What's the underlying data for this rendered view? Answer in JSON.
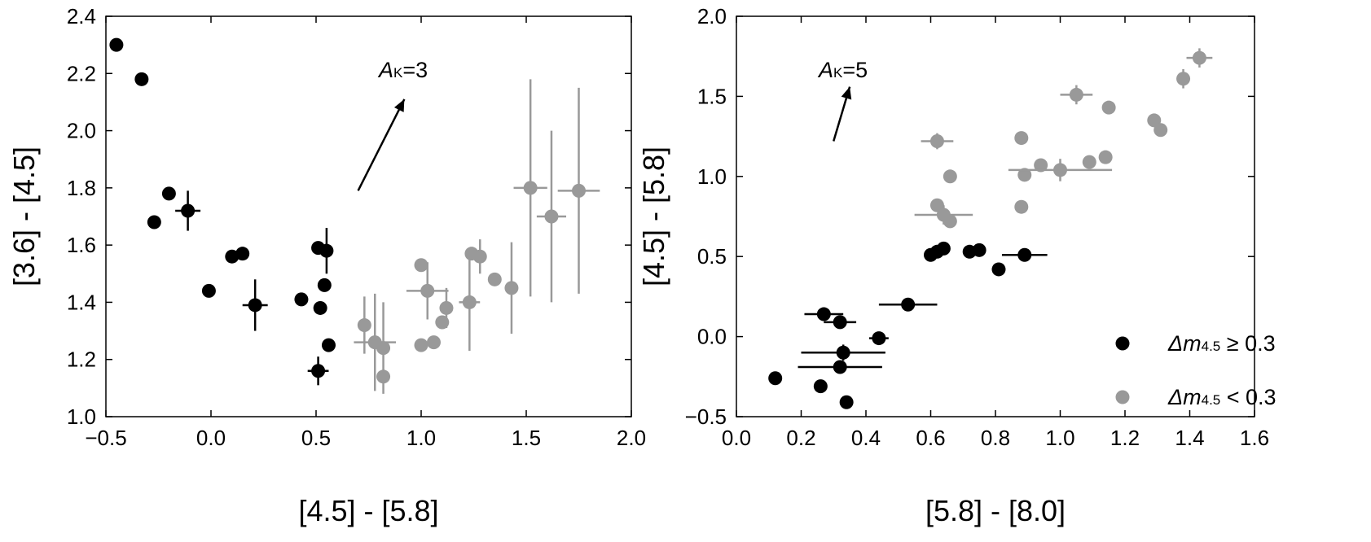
{
  "colors": {
    "black_series": "#000000",
    "gray_series": "#999999",
    "frame": "#000000",
    "background": "#ffffff"
  },
  "chart_data": [
    {
      "type": "scatter",
      "xlabel": "[4.5] - [5.8]",
      "ylabel": "[3.6] - [4.5]",
      "xlim": [
        -0.5,
        2.0
      ],
      "ylim": [
        1.0,
        2.4
      ],
      "x_ticks": [
        "−0.5",
        "0.0",
        "0.5",
        "1.0",
        "1.5",
        "2.0"
      ],
      "y_ticks": [
        "1.0",
        "1.2",
        "1.4",
        "1.6",
        "1.8",
        "2.0",
        "2.2",
        "2.4"
      ],
      "grid": false,
      "legend": "none",
      "annotation": {
        "prefix": "A",
        "subscript": "K",
        "suffix": "=3",
        "arrow_from": [
          0.7,
          1.79
        ],
        "arrow_to": [
          0.92,
          2.11
        ]
      },
      "series": [
        {
          "color": "#000000",
          "points": [
            {
              "x": -0.45,
              "y": 2.3
            },
            {
              "x": -0.33,
              "y": 2.18
            },
            {
              "x": -0.27,
              "y": 1.68
            },
            {
              "x": -0.2,
              "y": 1.78
            },
            {
              "x": -0.11,
              "y": 1.72,
              "xerr": 0.06,
              "yerr": 0.07
            },
            {
              "x": -0.01,
              "y": 1.44
            },
            {
              "x": 0.1,
              "y": 1.56
            },
            {
              "x": 0.15,
              "y": 1.57
            },
            {
              "x": 0.21,
              "y": 1.39,
              "xerr": 0.06,
              "yerr": 0.09
            },
            {
              "x": 0.43,
              "y": 1.41
            },
            {
              "x": 0.51,
              "y": 1.59
            },
            {
              "x": 0.52,
              "y": 1.38
            },
            {
              "x": 0.54,
              "y": 1.46
            },
            {
              "x": 0.55,
              "y": 1.58,
              "yerr": 0.08
            },
            {
              "x": 0.56,
              "y": 1.25
            },
            {
              "x": 0.51,
              "y": 1.16,
              "xerr": 0.05,
              "yerr": 0.05
            }
          ]
        },
        {
          "color": "#999999",
          "points": [
            {
              "x": 0.73,
              "y": 1.32,
              "yerr": 0.1
            },
            {
              "x": 0.78,
              "y": 1.26,
              "xerr": 0.1,
              "yerr": 0.17
            },
            {
              "x": 0.82,
              "y": 1.24,
              "yerr": 0.16
            },
            {
              "x": 0.82,
              "y": 1.14
            },
            {
              "x": 1.0,
              "y": 1.53
            },
            {
              "x": 1.0,
              "y": 1.25
            },
            {
              "x": 1.03,
              "y": 1.44,
              "xerr": 0.1,
              "yerr": 0.1
            },
            {
              "x": 1.06,
              "y": 1.26
            },
            {
              "x": 1.1,
              "y": 1.33
            },
            {
              "x": 1.12,
              "y": 1.38,
              "yerr": 0.07
            },
            {
              "x": 1.23,
              "y": 1.4,
              "xerr": 0.05,
              "yerr": 0.17
            },
            {
              "x": 1.24,
              "y": 1.57
            },
            {
              "x": 1.28,
              "y": 1.56,
              "yerr": 0.06
            },
            {
              "x": 1.35,
              "y": 1.48
            },
            {
              "x": 1.43,
              "y": 1.45,
              "yerr": 0.16
            },
            {
              "x": 1.52,
              "y": 1.8,
              "xerr": 0.08,
              "yerr": 0.38
            },
            {
              "x": 1.62,
              "y": 1.7,
              "xerr": 0.07,
              "yerr": 0.3
            },
            {
              "x": 1.75,
              "y": 1.79,
              "xerr": 0.1,
              "yerr": 0.36
            }
          ]
        }
      ]
    },
    {
      "type": "scatter",
      "xlabel": "[5.8] - [8.0]",
      "ylabel": "[4.5] - [5.8]",
      "xlim": [
        0.0,
        1.6
      ],
      "ylim": [
        -0.5,
        2.0
      ],
      "x_ticks": [
        "0.0",
        "0.2",
        "0.4",
        "0.6",
        "0.8",
        "1.0",
        "1.2",
        "1.4",
        "1.6"
      ],
      "y_ticks": [
        "−0.5",
        "0.0",
        "0.5",
        "1.0",
        "1.5",
        "2.0"
      ],
      "grid": false,
      "legend": "bottom-right",
      "annotation": {
        "prefix": "A",
        "subscript": "K",
        "suffix": "=5",
        "arrow_from": [
          0.3,
          1.22
        ],
        "arrow_to": [
          0.35,
          1.56
        ]
      },
      "series": [
        {
          "name": "Δm4.5 ≥ 0.3",
          "legend_prefix": "Δm",
          "legend_sub": "4.5",
          "legend_suffix": " ≥ 0.3",
          "color": "#000000",
          "points": [
            {
              "x": 0.12,
              "y": -0.26
            },
            {
              "x": 0.26,
              "y": -0.31
            },
            {
              "x": 0.27,
              "y": 0.14,
              "xerr": 0.06
            },
            {
              "x": 0.32,
              "y": 0.09,
              "xerr": 0.05
            },
            {
              "x": 0.33,
              "y": -0.1,
              "xerr": 0.13,
              "yerr": 0.05
            },
            {
              "x": 0.32,
              "y": -0.19,
              "xerr": 0.13
            },
            {
              "x": 0.34,
              "y": -0.41
            },
            {
              "x": 0.44,
              "y": -0.01,
              "xerr": 0.03
            },
            {
              "x": 0.53,
              "y": 0.2,
              "xerr": 0.09,
              "yerr": 0.04
            },
            {
              "x": 0.6,
              "y": 0.51
            },
            {
              "x": 0.62,
              "y": 0.53
            },
            {
              "x": 0.64,
              "y": 0.55
            },
            {
              "x": 0.72,
              "y": 0.53
            },
            {
              "x": 0.75,
              "y": 0.54
            },
            {
              "x": 0.81,
              "y": 0.42
            },
            {
              "x": 0.89,
              "y": 0.51,
              "xerr": 0.07,
              "yerr": 0.03
            }
          ]
        },
        {
          "name": "Δm4.5 < 0.3",
          "legend_prefix": "Δm",
          "legend_sub": "4.5",
          "legend_suffix": " < 0.3",
          "color": "#999999",
          "points": [
            {
              "x": 0.62,
              "y": 1.22,
              "xerr": 0.05,
              "yerr": 0.05
            },
            {
              "x": 0.66,
              "y": 1.0
            },
            {
              "x": 0.62,
              "y": 0.82
            },
            {
              "x": 0.64,
              "y": 0.76,
              "xerr": 0.09,
              "yerr": 0.06
            },
            {
              "x": 0.66,
              "y": 0.72
            },
            {
              "x": 0.88,
              "y": 1.24
            },
            {
              "x": 0.88,
              "y": 0.81
            },
            {
              "x": 0.89,
              "y": 1.01
            },
            {
              "x": 0.94,
              "y": 1.07
            },
            {
              "x": 1.0,
              "y": 1.04,
              "xerr": 0.16,
              "yerr": 0.07
            },
            {
              "x": 1.05,
              "y": 1.51,
              "xerr": 0.05,
              "yerr": 0.06
            },
            {
              "x": 1.09,
              "y": 1.09
            },
            {
              "x": 1.14,
              "y": 1.12
            },
            {
              "x": 1.15,
              "y": 1.43
            },
            {
              "x": 1.29,
              "y": 1.35
            },
            {
              "x": 1.31,
              "y": 1.29
            },
            {
              "x": 1.38,
              "y": 1.61,
              "yerr": 0.06
            },
            {
              "x": 1.43,
              "y": 1.74,
              "xerr": 0.04,
              "yerr": 0.06
            }
          ]
        }
      ]
    }
  ]
}
